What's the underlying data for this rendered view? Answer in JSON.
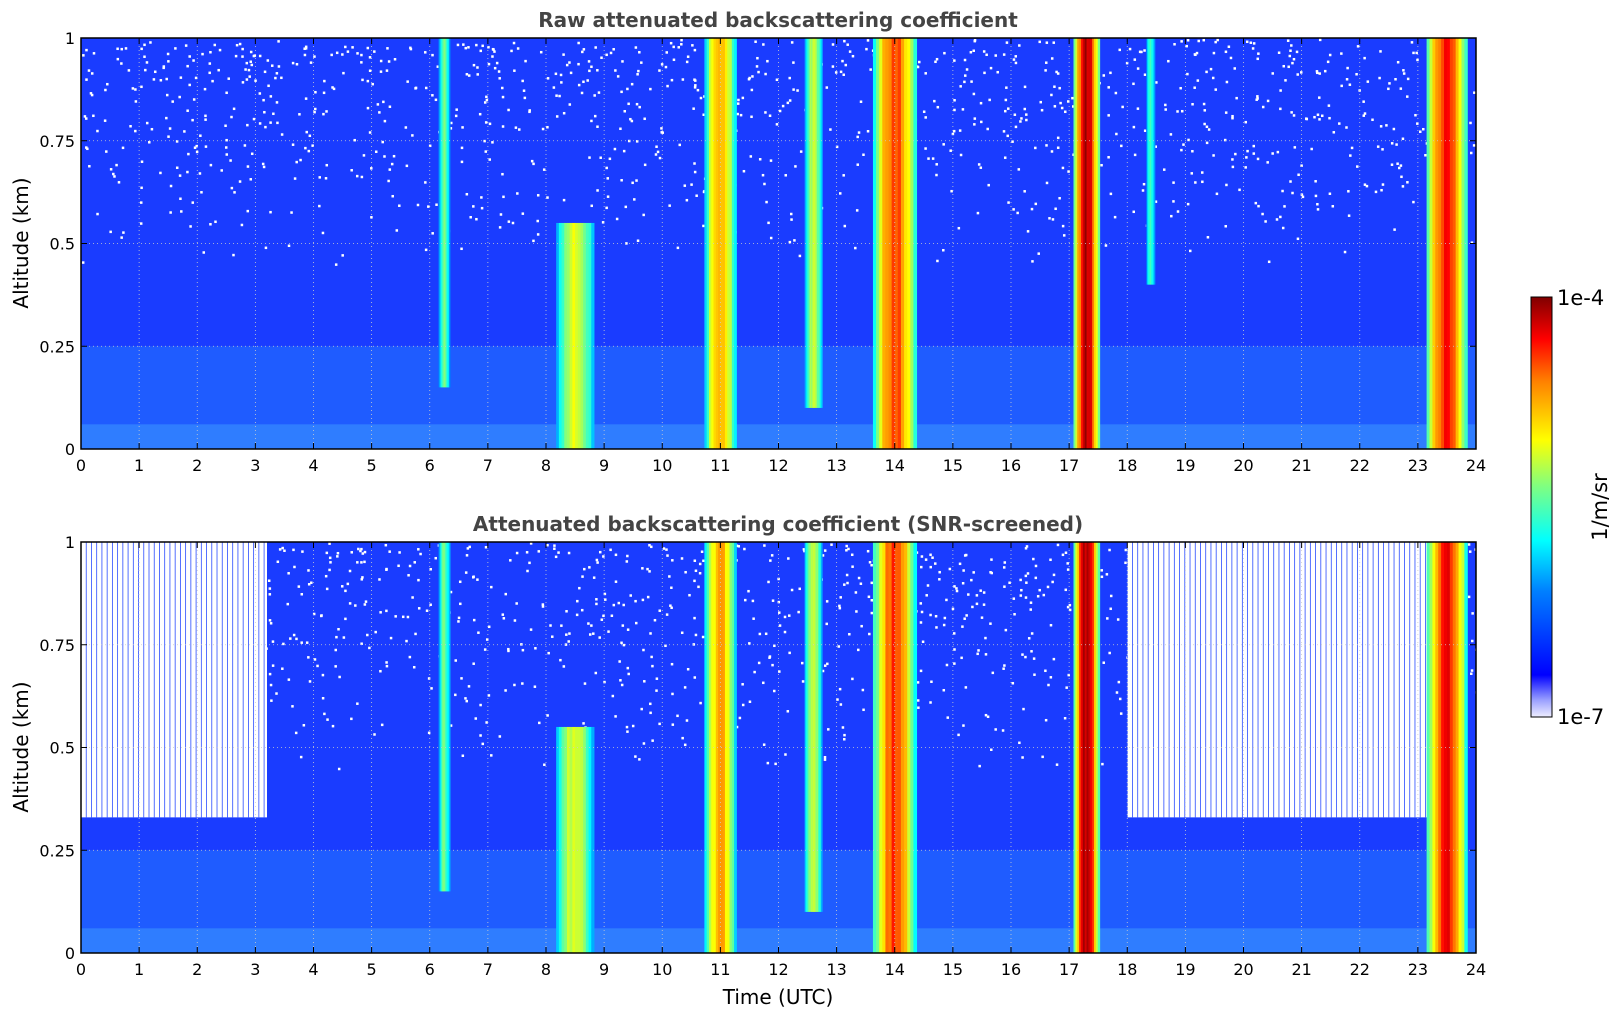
{
  "chart_data": [
    {
      "type": "heatmap",
      "title": "Raw attenuated backscattering coefficient",
      "xlabel": "",
      "ylabel": "Altitude (km)",
      "xlim": [
        0,
        24
      ],
      "ylim": [
        0,
        1
      ],
      "x_ticks": [
        "0",
        "1",
        "2",
        "3",
        "4",
        "5",
        "6",
        "7",
        "8",
        "9",
        "10",
        "11",
        "12",
        "13",
        "14",
        "15",
        "16",
        "17",
        "18",
        "19",
        "20",
        "21",
        "22",
        "23",
        "24"
      ],
      "y_ticks": [
        "0",
        "0.25",
        "0.5",
        "0.75",
        "1"
      ],
      "grid": true,
      "colormap": "jet (log scale)",
      "background_color": "#1a3cff",
      "features": [
        {
          "time_center": 6.25,
          "width_h": 0.2,
          "alt_bottom": 0.15,
          "alt_top": 1.0,
          "level": 0.5
        },
        {
          "time_center": 8.5,
          "width_h": 0.65,
          "alt_bottom": 0.0,
          "alt_top": 0.55,
          "level": 0.62
        },
        {
          "time_center": 11.0,
          "width_h": 0.55,
          "alt_bottom": 0.0,
          "alt_top": 1.0,
          "level": 0.75
        },
        {
          "time_center": 12.6,
          "width_h": 0.3,
          "alt_bottom": 0.1,
          "alt_top": 1.0,
          "level": 0.6
        },
        {
          "time_center": 14.0,
          "width_h": 0.75,
          "alt_bottom": 0.0,
          "alt_top": 1.0,
          "level": 0.85
        },
        {
          "time_center": 17.3,
          "width_h": 0.45,
          "alt_bottom": 0.0,
          "alt_top": 1.0,
          "level": 0.97
        },
        {
          "time_center": 18.4,
          "width_h": 0.15,
          "alt_bottom": 0.4,
          "alt_top": 1.0,
          "level": 0.45
        },
        {
          "time_center": 23.5,
          "width_h": 0.7,
          "alt_bottom": 0.0,
          "alt_top": 1.0,
          "level": 0.9
        }
      ]
    },
    {
      "type": "heatmap",
      "title": "Attenuated backscattering coefficient (SNR-screened)",
      "xlabel": "Time (UTC)",
      "ylabel": "Altitude (km)",
      "xlim": [
        0,
        24
      ],
      "ylim": [
        0,
        1
      ],
      "x_ticks": [
        "0",
        "1",
        "2",
        "3",
        "4",
        "5",
        "6",
        "7",
        "8",
        "9",
        "10",
        "11",
        "12",
        "13",
        "14",
        "15",
        "16",
        "17",
        "18",
        "19",
        "20",
        "21",
        "22",
        "23",
        "24"
      ],
      "y_ticks": [
        "0",
        "0.25",
        "0.5",
        "0.75",
        "1"
      ],
      "grid": true,
      "colormap": "jet (log scale)",
      "background_color": "#1a3cff",
      "screened_regions": [
        {
          "time_start": 0.0,
          "time_end": 3.2,
          "screened_above_alt": 0.33
        },
        {
          "time_start": 18.0,
          "time_end": 23.2,
          "screened_above_alt": 0.33
        }
      ],
      "features": [
        {
          "time_center": 6.25,
          "width_h": 0.2,
          "alt_bottom": 0.15,
          "alt_top": 1.0,
          "level": 0.5
        },
        {
          "time_center": 8.5,
          "width_h": 0.65,
          "alt_bottom": 0.0,
          "alt_top": 0.55,
          "level": 0.62
        },
        {
          "time_center": 11.0,
          "width_h": 0.55,
          "alt_bottom": 0.0,
          "alt_top": 1.0,
          "level": 0.75
        },
        {
          "time_center": 12.6,
          "width_h": 0.3,
          "alt_bottom": 0.1,
          "alt_top": 1.0,
          "level": 0.6
        },
        {
          "time_center": 14.0,
          "width_h": 0.75,
          "alt_bottom": 0.0,
          "alt_top": 1.0,
          "level": 0.85
        },
        {
          "time_center": 17.3,
          "width_h": 0.45,
          "alt_bottom": 0.0,
          "alt_top": 1.0,
          "level": 0.97
        },
        {
          "time_center": 23.5,
          "width_h": 0.7,
          "alt_bottom": 0.0,
          "alt_top": 1.0,
          "level": 0.9
        }
      ]
    }
  ],
  "colorbar": {
    "label": "1/m/sr",
    "max_label": "1e-4",
    "min_label": "1e-7",
    "colormap": "jet",
    "scale": "log",
    "range": [
      1e-07,
      0.0001
    ]
  }
}
